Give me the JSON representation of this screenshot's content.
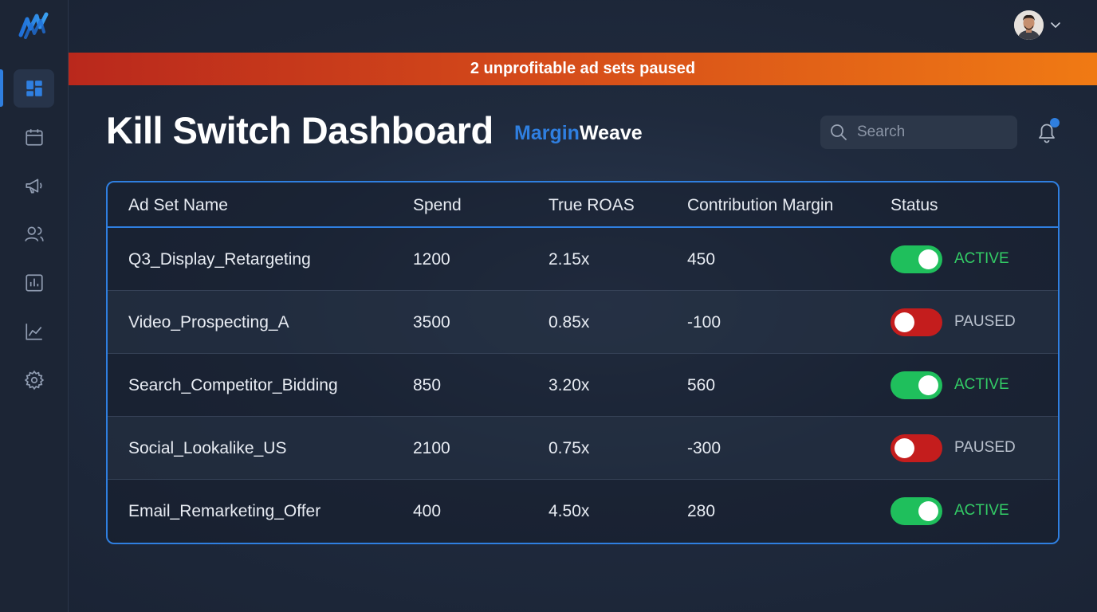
{
  "banner": {
    "message": "2 unprofitable ad sets paused"
  },
  "header": {
    "title": "Kill Switch Dashboard",
    "brand_part1": "Margin",
    "brand_part2": "Weave"
  },
  "search": {
    "placeholder": "Search"
  },
  "sidebar": {
    "items": [
      {
        "icon": "dashboard-icon",
        "active": true
      },
      {
        "icon": "calendar-icon",
        "active": false
      },
      {
        "icon": "megaphone-icon",
        "active": false
      },
      {
        "icon": "users-icon",
        "active": false
      },
      {
        "icon": "bar-chart-icon",
        "active": false
      },
      {
        "icon": "line-chart-icon",
        "active": false
      },
      {
        "icon": "gear-icon",
        "active": false
      }
    ]
  },
  "table": {
    "columns": [
      "Ad Set Name",
      "Spend",
      "True ROAS",
      "Contribution Margin",
      "Status"
    ],
    "rows": [
      {
        "name": "Q3_Display_Retargeting",
        "spend": "1200",
        "roas": "2.15x",
        "margin": "450",
        "status": "ACTIVE",
        "on": true
      },
      {
        "name": "Video_Prospecting_A",
        "spend": "3500",
        "roas": "0.85x",
        "margin": "-100",
        "status": "PAUSED",
        "on": false
      },
      {
        "name": "Search_Competitor_Bidding",
        "spend": "850",
        "roas": "3.20x",
        "margin": "560",
        "status": "ACTIVE",
        "on": true
      },
      {
        "name": "Social_Lookalike_US",
        "spend": "2100",
        "roas": "0.75x",
        "margin": "-300",
        "status": "PAUSED",
        "on": false
      },
      {
        "name": "Email_Remarketing_Offer",
        "spend": "400",
        "roas": "4.50x",
        "margin": "280",
        "status": "ACTIVE",
        "on": true
      }
    ]
  },
  "colors": {
    "accent": "#2f7fe0",
    "active_green": "#1fbf5c",
    "paused_red": "#c41d1d",
    "banner_start": "#b9281c",
    "banner_end": "#f07a14"
  }
}
